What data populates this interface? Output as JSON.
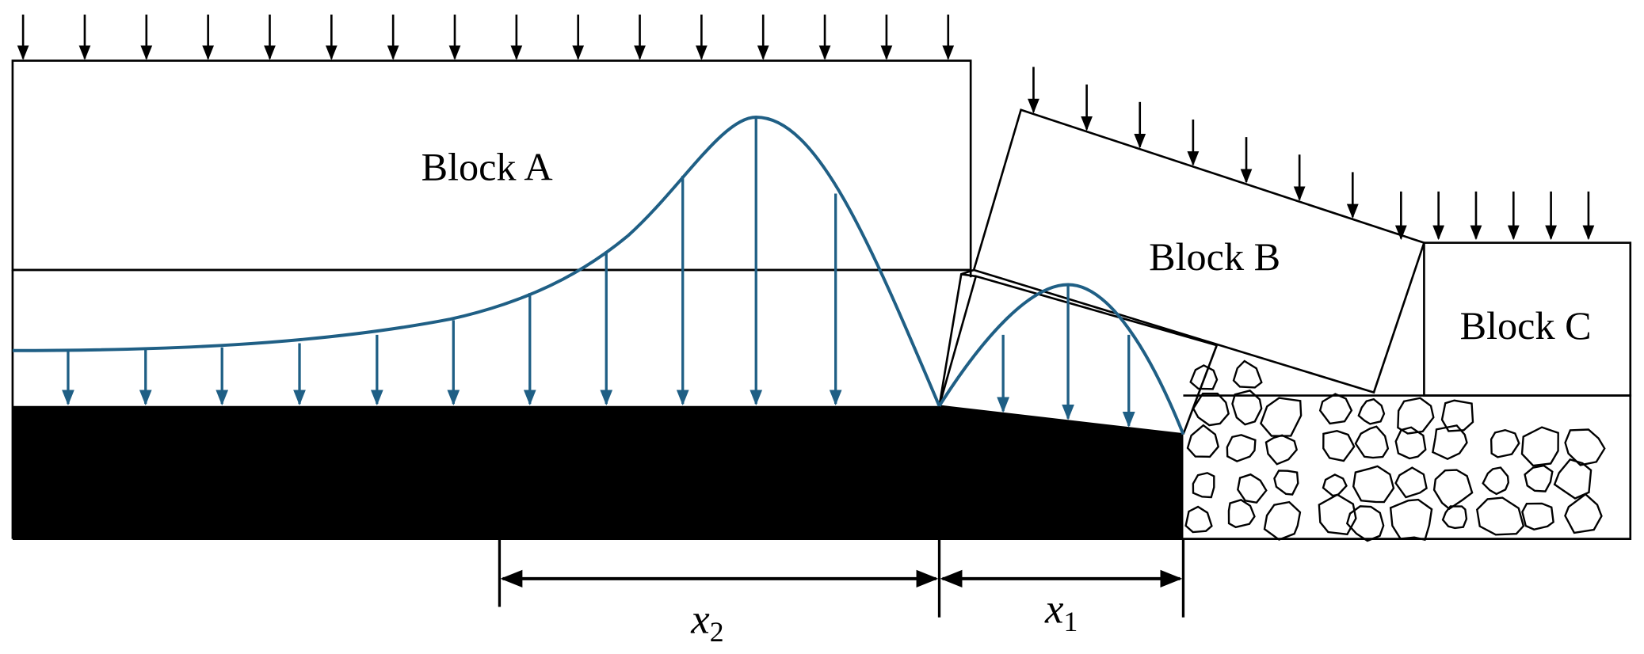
{
  "blocks": [
    {
      "label": "Block A"
    },
    {
      "label": "Block B"
    },
    {
      "label": "Block C"
    }
  ],
  "dimensions": [
    {
      "symbol": "x",
      "subscript": "2"
    },
    {
      "symbol": "x",
      "subscript": "1"
    }
  ]
}
